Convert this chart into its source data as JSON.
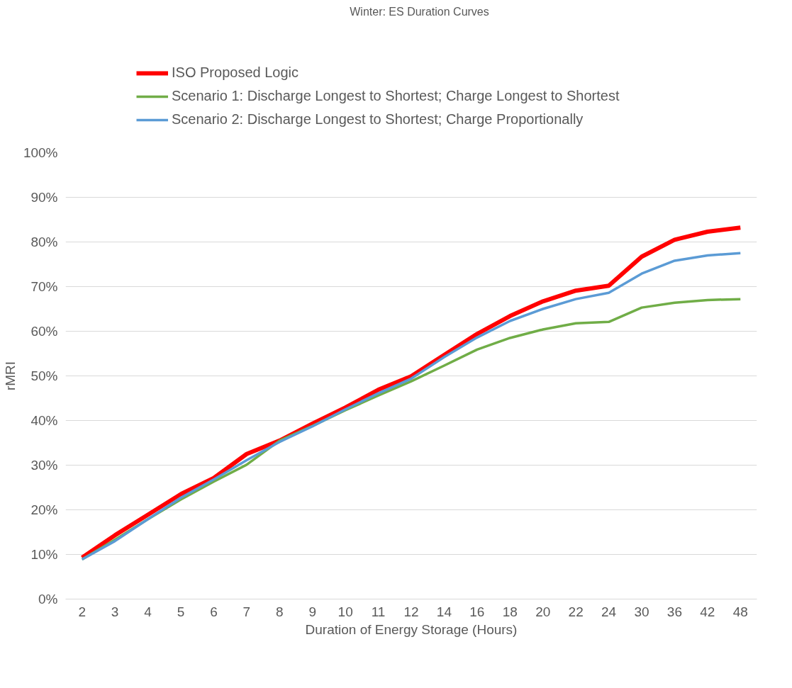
{
  "chart_data": {
    "type": "line",
    "title": "Winter: ES Duration Curves",
    "xlabel": "Duration of Energy Storage (Hours)",
    "ylabel": "rMRI",
    "categories": [
      "2",
      "3",
      "4",
      "5",
      "6",
      "7",
      "8",
      "9",
      "10",
      "11",
      "12",
      "14",
      "16",
      "18",
      "20",
      "22",
      "24",
      "30",
      "36",
      "42",
      "48"
    ],
    "series": [
      {
        "name": "ISO Proposed Logic",
        "color": "#ff0000",
        "values": [
          0.093,
          0.143,
          0.189,
          0.235,
          0.271,
          0.325,
          0.355,
          0.393,
          0.429,
          0.469,
          0.499,
          0.547,
          0.594,
          0.634,
          0.667,
          0.691,
          0.702,
          0.767,
          0.805,
          0.823,
          0.832
        ]
      },
      {
        "name": "Scenario 1: Discharge Longest to Shortest; Charge Longest to Shortest",
        "color": "#70ad47",
        "values": [
          0.089,
          0.133,
          0.179,
          0.223,
          0.263,
          0.301,
          0.355,
          0.388,
          0.423,
          0.456,
          0.488,
          0.523,
          0.559,
          0.585,
          0.604,
          0.618,
          0.621,
          0.653,
          0.664,
          0.67,
          0.672
        ]
      },
      {
        "name": "Scenario 2: Discharge Longest to Shortest; Charge Proportionally",
        "color": "#5b9bd5",
        "values": [
          0.089,
          0.13,
          0.179,
          0.227,
          0.268,
          0.311,
          0.352,
          0.387,
          0.425,
          0.461,
          0.494,
          0.542,
          0.586,
          0.623,
          0.65,
          0.672,
          0.686,
          0.729,
          0.758,
          0.77,
          0.775
        ]
      }
    ],
    "ylim": [
      0,
      1
    ],
    "yticks": [
      {
        "value": 0,
        "label": "0%"
      },
      {
        "value": 0.1,
        "label": "10%"
      },
      {
        "value": 0.2,
        "label": "20%"
      },
      {
        "value": 0.3,
        "label": "30%"
      },
      {
        "value": 0.4,
        "label": "40%"
      },
      {
        "value": 0.5,
        "label": "50%"
      },
      {
        "value": 0.6,
        "label": "60%"
      },
      {
        "value": 0.7,
        "label": "70%"
      },
      {
        "value": 0.8,
        "label": "80%"
      },
      {
        "value": 0.9,
        "label": "90%"
      },
      {
        "value": 1,
        "label": "100%"
      }
    ],
    "grid": "y",
    "legend": "top",
    "marker": "none",
    "line_style": "solid"
  }
}
